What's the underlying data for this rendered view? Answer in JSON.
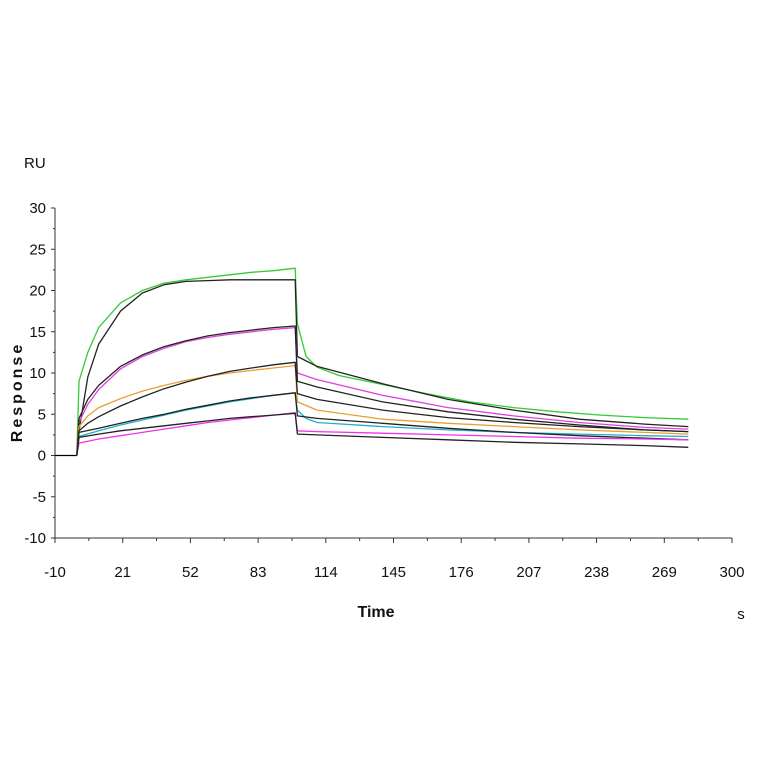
{
  "chart_data": {
    "type": "line",
    "title": "",
    "xlabel": "Time",
    "x_unit": "s",
    "ylabel": "Response",
    "y_unit": "RU",
    "xlim": [
      -10,
      300
    ],
    "ylim": [
      -10,
      30
    ],
    "x_ticks": [
      "-10",
      "21",
      "52",
      "83",
      "114",
      "145",
      "176",
      "207",
      "238",
      "269",
      "300"
    ],
    "y_ticks": [
      "30",
      "25",
      "20",
      "15",
      "10",
      "5",
      "0",
      "-5",
      "-10"
    ],
    "grid": false,
    "legend": "none",
    "baseline": {
      "x": [
        -10,
        0
      ],
      "y": [
        0,
        0
      ],
      "color": "#000000"
    },
    "series": [
      {
        "color": "#33cc33",
        "x": [
          0,
          1,
          5,
          10,
          20,
          30,
          40,
          50,
          60,
          70,
          80,
          90,
          100,
          101,
          105,
          110,
          120,
          140,
          160,
          180,
          200,
          220,
          240,
          260,
          280
        ],
        "y": [
          0,
          9.0,
          12.5,
          15.5,
          18.5,
          20.0,
          20.9,
          21.3,
          21.6,
          21.9,
          22.2,
          22.4,
          22.7,
          16.0,
          12.0,
          10.7,
          9.7,
          8.6,
          7.5,
          6.5,
          5.8,
          5.3,
          4.9,
          4.6,
          4.4
        ]
      },
      {
        "color": "#222222",
        "x": [
          0,
          1,
          5,
          10,
          20,
          30,
          40,
          50,
          60,
          70,
          80,
          90,
          100,
          101,
          110,
          140,
          170,
          200,
          230,
          260,
          280
        ],
        "y": [
          0,
          3.0,
          9.5,
          13.5,
          17.5,
          19.7,
          20.7,
          21.1,
          21.2,
          21.3,
          21.3,
          21.3,
          21.3,
          12.0,
          10.8,
          8.7,
          6.8,
          5.5,
          4.4,
          3.8,
          3.5
        ]
      },
      {
        "color": "#dd44dd",
        "x": [
          0,
          1,
          5,
          10,
          20,
          30,
          40,
          50,
          60,
          70,
          80,
          90,
          100,
          101,
          110,
          140,
          170,
          200,
          230,
          260,
          280
        ],
        "y": [
          0,
          4.0,
          6.2,
          8.0,
          10.5,
          12.0,
          13.0,
          13.8,
          14.3,
          14.7,
          15.0,
          15.3,
          15.5,
          10.0,
          9.2,
          7.3,
          5.8,
          4.8,
          4.0,
          3.4,
          3.2
        ]
      },
      {
        "color": "#222222",
        "x": [
          0,
          1,
          5,
          10,
          20,
          30,
          40,
          50,
          60,
          70,
          80,
          90,
          100,
          101,
          110,
          140,
          170,
          200,
          230,
          260,
          280
        ],
        "y": [
          0,
          4.5,
          6.8,
          8.5,
          10.8,
          12.2,
          13.2,
          13.9,
          14.5,
          14.9,
          15.2,
          15.5,
          15.7,
          9.0,
          8.3,
          6.5,
          5.3,
          4.4,
          3.7,
          3.1,
          2.9
        ]
      },
      {
        "color": "#e8a030",
        "x": [
          0,
          1,
          5,
          10,
          20,
          30,
          40,
          50,
          60,
          70,
          80,
          90,
          100,
          101,
          110,
          140,
          170,
          200,
          230,
          260,
          280
        ],
        "y": [
          0,
          3.5,
          4.8,
          5.8,
          6.9,
          7.8,
          8.5,
          9.1,
          9.6,
          10.0,
          10.3,
          10.6,
          10.9,
          6.5,
          5.5,
          4.4,
          3.9,
          3.5,
          3.1,
          2.8,
          2.6
        ]
      },
      {
        "color": "#222222",
        "x": [
          0,
          1,
          5,
          10,
          20,
          30,
          40,
          50,
          60,
          70,
          80,
          90,
          100,
          101,
          110,
          140,
          170,
          200,
          230,
          260,
          280
        ],
        "y": [
          0,
          3.0,
          3.9,
          4.7,
          6.0,
          7.1,
          8.1,
          8.9,
          9.6,
          10.2,
          10.6,
          11.0,
          11.3,
          7.5,
          6.8,
          5.5,
          4.6,
          4.0,
          3.5,
          3.1,
          2.9
        ]
      },
      {
        "color": "#20b0c8",
        "x": [
          0,
          1,
          10,
          20,
          30,
          40,
          50,
          60,
          70,
          80,
          90,
          100,
          101,
          105,
          110,
          140,
          170,
          200,
          230,
          260,
          280
        ],
        "y": [
          0,
          2.3,
          3.0,
          3.7,
          4.3,
          4.9,
          5.5,
          6.0,
          6.5,
          6.9,
          7.3,
          7.6,
          5.5,
          4.5,
          4.0,
          3.5,
          3.1,
          2.8,
          2.6,
          2.4,
          2.3
        ]
      },
      {
        "color": "#222222",
        "x": [
          0,
          1,
          10,
          20,
          30,
          40,
          50,
          60,
          70,
          80,
          90,
          100,
          101,
          110,
          140,
          170,
          200,
          230,
          260,
          280
        ],
        "y": [
          0,
          2.8,
          3.3,
          3.9,
          4.5,
          5.0,
          5.6,
          6.1,
          6.6,
          7.0,
          7.3,
          7.6,
          4.8,
          4.5,
          3.9,
          3.3,
          2.8,
          2.4,
          2.1,
          1.9
        ]
      },
      {
        "color": "#ee33ee",
        "x": [
          0,
          1,
          10,
          20,
          30,
          40,
          50,
          60,
          70,
          80,
          90,
          100,
          101,
          110,
          140,
          170,
          200,
          230,
          260,
          280
        ],
        "y": [
          0,
          1.5,
          2.0,
          2.4,
          2.8,
          3.2,
          3.6,
          4.0,
          4.3,
          4.6,
          4.9,
          5.2,
          3.0,
          2.9,
          2.7,
          2.5,
          2.3,
          2.1,
          2.0,
          1.9
        ]
      },
      {
        "color": "#222222",
        "x": [
          0,
          1,
          10,
          20,
          30,
          40,
          50,
          60,
          70,
          80,
          90,
          100,
          101,
          110,
          140,
          170,
          200,
          230,
          260,
          280
        ],
        "y": [
          0,
          2.2,
          2.6,
          3.0,
          3.3,
          3.6,
          3.9,
          4.2,
          4.5,
          4.7,
          4.9,
          5.1,
          2.6,
          2.5,
          2.2,
          1.9,
          1.6,
          1.4,
          1.2,
          1.0
        ]
      }
    ]
  }
}
